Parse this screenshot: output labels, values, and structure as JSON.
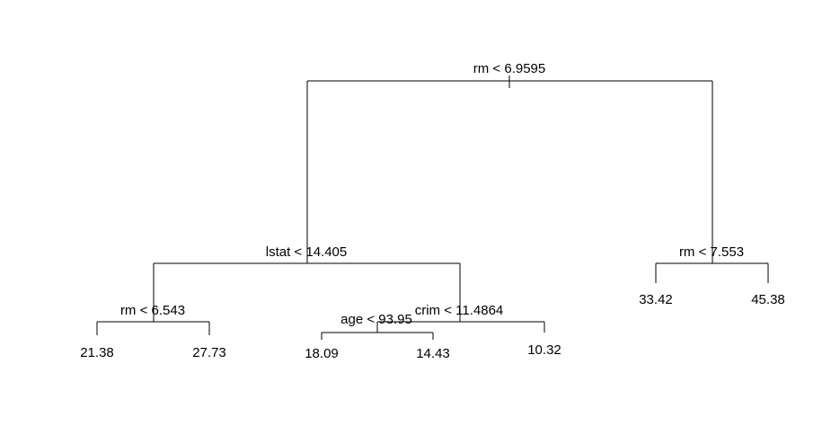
{
  "tree": {
    "splits": {
      "root": "rm < 6.9595",
      "left": "lstat < 14.405",
      "right": "rm < 7.553",
      "left_left": "rm < 6.543",
      "left_right": "crim < 11.4864",
      "left_right_left": "age < 93.95"
    },
    "leaves": {
      "ll_l": "21.38",
      "ll_r": "27.73",
      "lrl_l": "18.09",
      "lrl_r": "14.43",
      "lr_r": "10.32",
      "r_l": "33.42",
      "r_r": "45.38"
    }
  }
}
